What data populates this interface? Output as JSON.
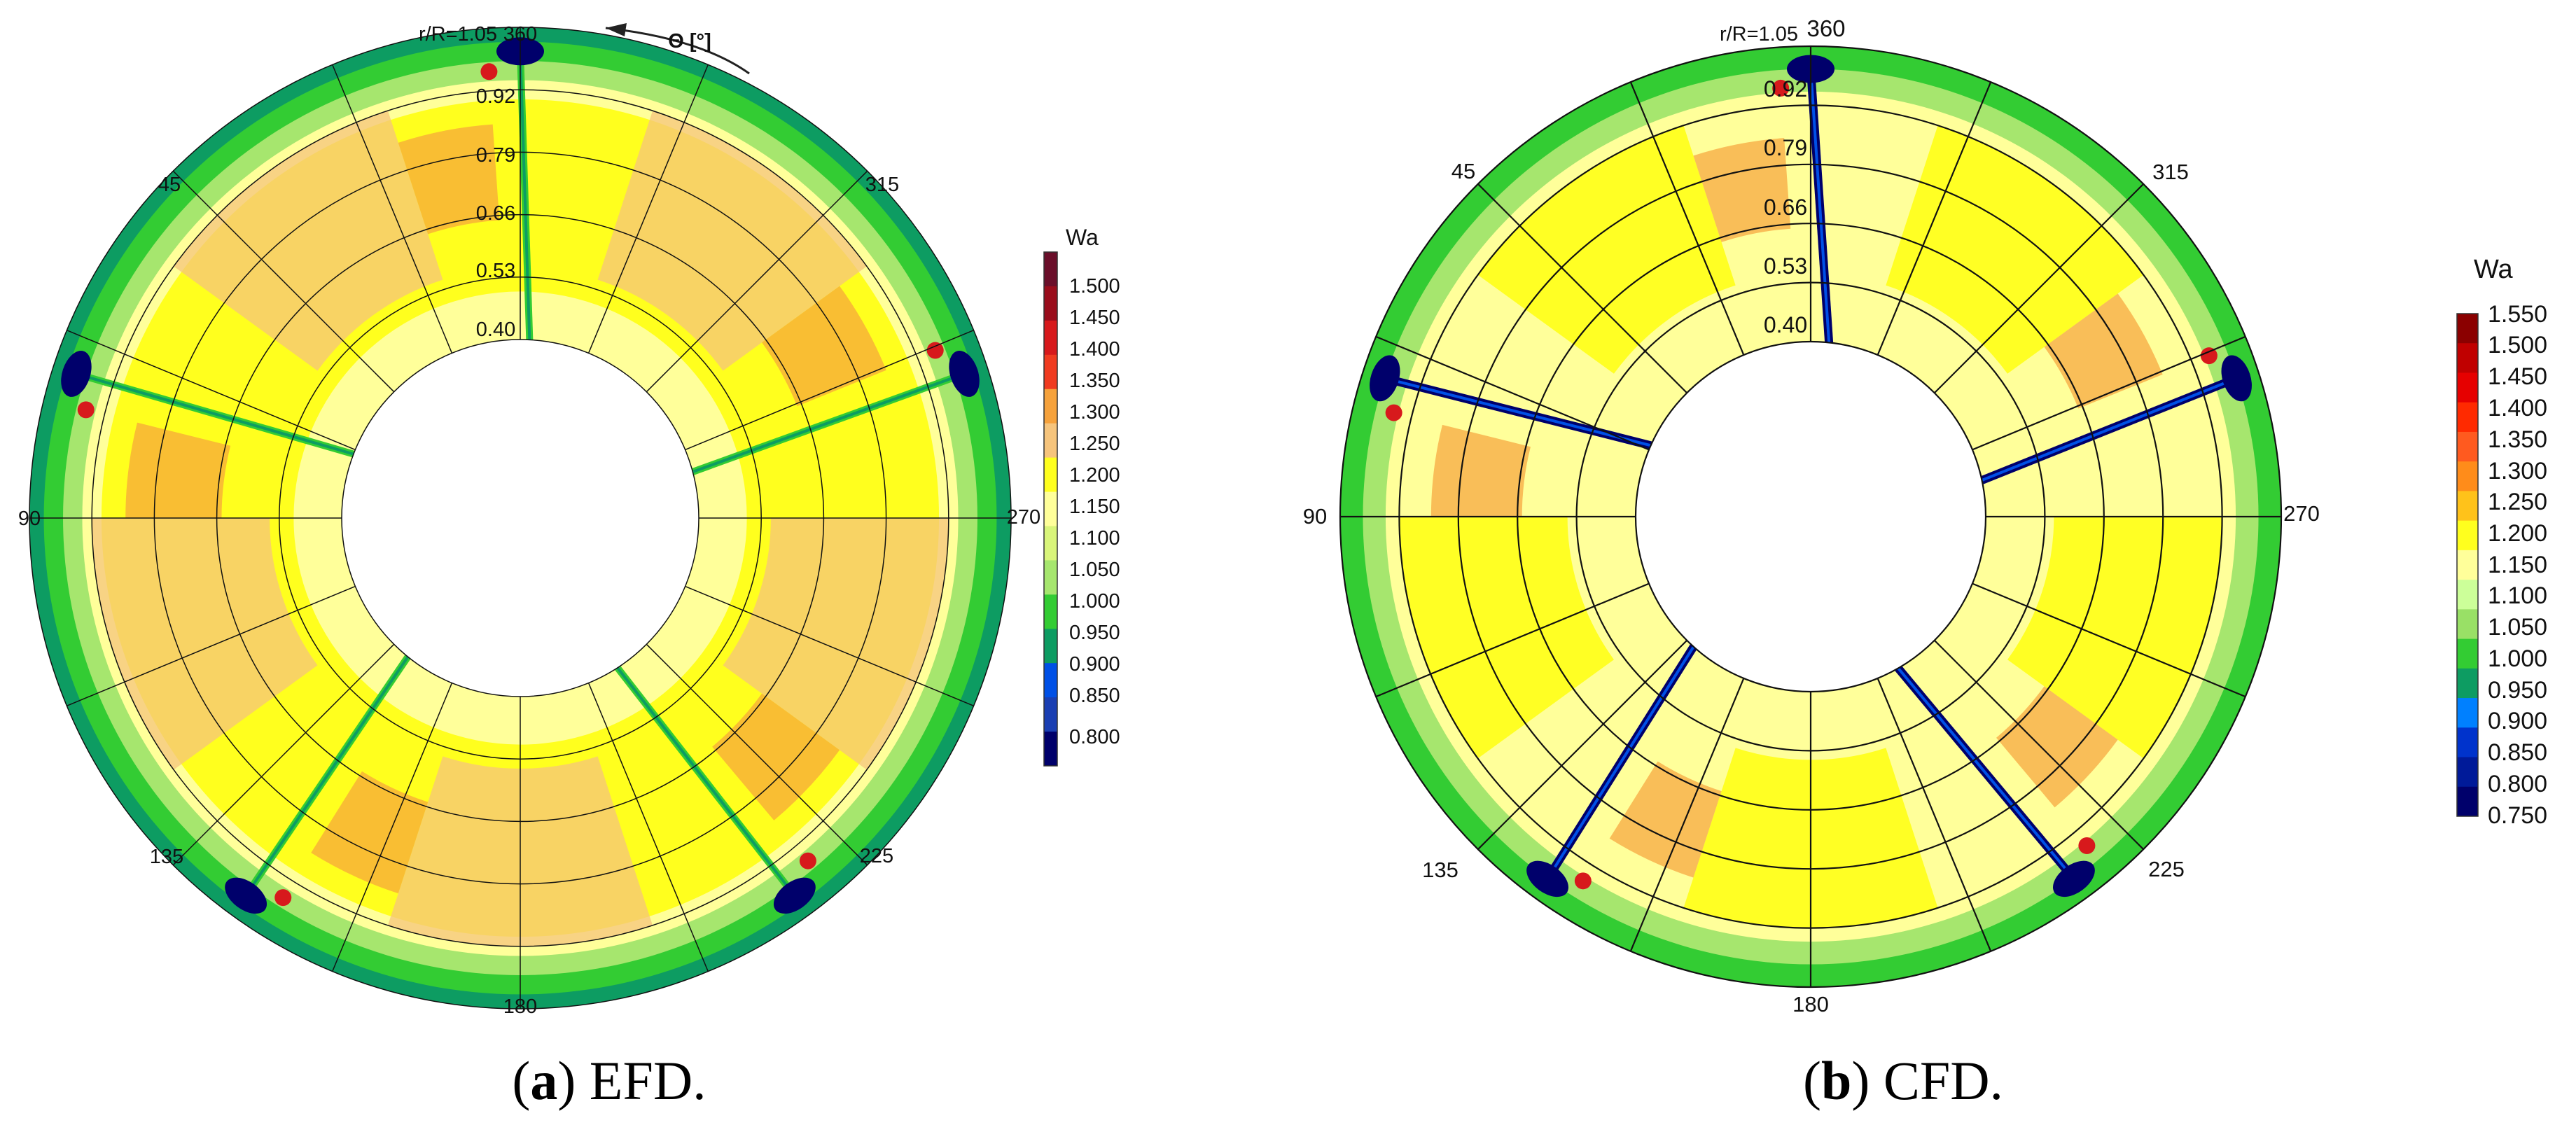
{
  "chart_data": [
    {
      "id": "a",
      "type": "heatmap",
      "subtype": "polar-contour",
      "title": "",
      "caption_letter": "a",
      "caption_text": "EFD.",
      "radius_label": "r/R=1.05",
      "theta_label": "Θ [°]",
      "angle_ticks": [
        "360",
        "315",
        "270",
        "225",
        "180",
        "135",
        "90",
        "45"
      ],
      "radius_ticks": [
        "0.92",
        "0.79",
        "0.66",
        "0.53",
        "0.40"
      ],
      "radius_range": [
        0.4,
        1.05
      ],
      "blade_angles_deg": [
        0,
        72,
        144,
        216,
        288
      ],
      "colorbar": {
        "title": "Wa",
        "levels": [
          "1.500",
          "1.450",
          "1.400",
          "1.350",
          "1.300",
          "1.250",
          "1.200",
          "1.150",
          "1.100",
          "1.050",
          "1.000",
          "0.950",
          "0.900",
          "0.850",
          "0.800"
        ],
        "range": [
          0.8,
          1.5
        ]
      }
    },
    {
      "id": "b",
      "type": "heatmap",
      "subtype": "polar-contour",
      "title": "",
      "caption_letter": "b",
      "caption_text": "CFD.",
      "radius_label": "r/R=1.05",
      "angle_ticks": [
        "360",
        "315",
        "270",
        "225",
        "180",
        "135",
        "90",
        "45"
      ],
      "radius_ticks": [
        "0.92",
        "0.79",
        "0.66",
        "0.53",
        "0.40"
      ],
      "radius_range": [
        0.4,
        1.05
      ],
      "blade_angles_deg": [
        0,
        72,
        144,
        216,
        288
      ],
      "colorbar": {
        "title": "Wa",
        "levels": [
          "1.550",
          "1.500",
          "1.450",
          "1.400",
          "1.350",
          "1.300",
          "1.250",
          "1.200",
          "1.150",
          "1.100",
          "1.050",
          "1.000",
          "0.950",
          "0.900",
          "0.850",
          "0.800",
          "0.750"
        ],
        "range": [
          0.75,
          1.55
        ]
      }
    }
  ],
  "colors": {
    "red": "#d7191c",
    "orange": "#f6a23c",
    "yellow": "#ffff1e",
    "light_yellow": "#ffff9a",
    "light_green": "#a6e66e",
    "green": "#33cc33",
    "teal": "#0d9c62",
    "blue": "#0050e6",
    "navy": "#00006b"
  }
}
